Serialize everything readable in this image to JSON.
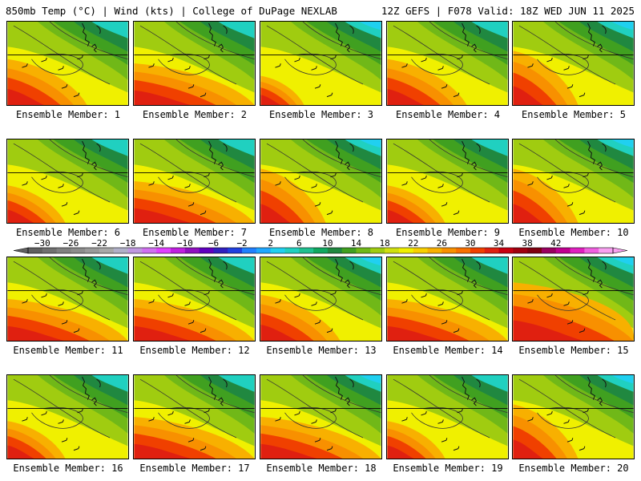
{
  "header": {
    "left": "850mb Temp (°C) | Wind (kts) | College of DuPage NEXLAB",
    "right": "12Z GEFS | F078 Valid: 18Z WED JUN 11 2025"
  },
  "panel_label_prefix": "Ensemble Member:",
  "members": [
    {
      "label": "Ensemble Member: 1",
      "pattern": "hot-southwest"
    },
    {
      "label": "Ensemble Member: 2",
      "pattern": "hot-south"
    },
    {
      "label": "Ensemble Member: 3",
      "pattern": "mild"
    },
    {
      "label": "Ensemble Member: 4",
      "pattern": "hot-southwest"
    },
    {
      "label": "Ensemble Member: 5",
      "pattern": "hot-west"
    },
    {
      "label": "Ensemble Member: 6",
      "pattern": "mild-warm"
    },
    {
      "label": "Ensemble Member: 7",
      "pattern": "hot-south"
    },
    {
      "label": "Ensemble Member: 8",
      "pattern": "hot-west"
    },
    {
      "label": "Ensemble Member: 9",
      "pattern": "mild-warm"
    },
    {
      "label": "Ensemble Member: 10",
      "pattern": "hot-west"
    },
    {
      "label": "Ensemble Member: 11",
      "pattern": "hot-south"
    },
    {
      "label": "Ensemble Member: 12",
      "pattern": "hot-south"
    },
    {
      "label": "Ensemble Member: 13",
      "pattern": "hot-southwest"
    },
    {
      "label": "Ensemble Member: 14",
      "pattern": "hot-south"
    },
    {
      "label": "Ensemble Member: 15",
      "pattern": "very-hot"
    },
    {
      "label": "Ensemble Member: 16",
      "pattern": "mild-warm"
    },
    {
      "label": "Ensemble Member: 17",
      "pattern": "hot-south"
    },
    {
      "label": "Ensemble Member: 18",
      "pattern": "hot-south"
    },
    {
      "label": "Ensemble Member: 19",
      "pattern": "mild-warm"
    },
    {
      "label": "Ensemble Member: 20",
      "pattern": "hot-west"
    }
  ],
  "colorbar": {
    "tick_labels": [
      "−30",
      "−26",
      "−22",
      "−18",
      "−14",
      "−10",
      "−6",
      "−2",
      "2",
      "6",
      "10",
      "14",
      "18",
      "22",
      "26",
      "30",
      "34",
      "38",
      "42"
    ],
    "min": -32,
    "max": 44,
    "step": 2,
    "colors": [
      "#606060",
      "#707070",
      "#808080",
      "#8c8c8c",
      "#9a9a9a",
      "#a8a8a8",
      "#b0b0c8",
      "#c098e0",
      "#d070f0",
      "#e040ff",
      "#c020e0",
      "#9010c0",
      "#6000c0",
      "#3020c0",
      "#2040e0",
      "#2080ff",
      "#20a8ff",
      "#20d0f0",
      "#20d0c0",
      "#20c090",
      "#10a860",
      "#208840",
      "#40a020",
      "#70b818",
      "#a0cc10",
      "#d0e010",
      "#f0f000",
      "#f8d000",
      "#f8b000",
      "#f89000",
      "#f87000",
      "#f04000",
      "#e02010",
      "#c80010",
      "#a00010",
      "#800010",
      "#9a0060",
      "#c00090",
      "#e020c0",
      "#f060e0",
      "#f8a0f0"
    ]
  },
  "colors": {
    "border": "#000000",
    "contour": "#333333",
    "coast": "#111111"
  }
}
